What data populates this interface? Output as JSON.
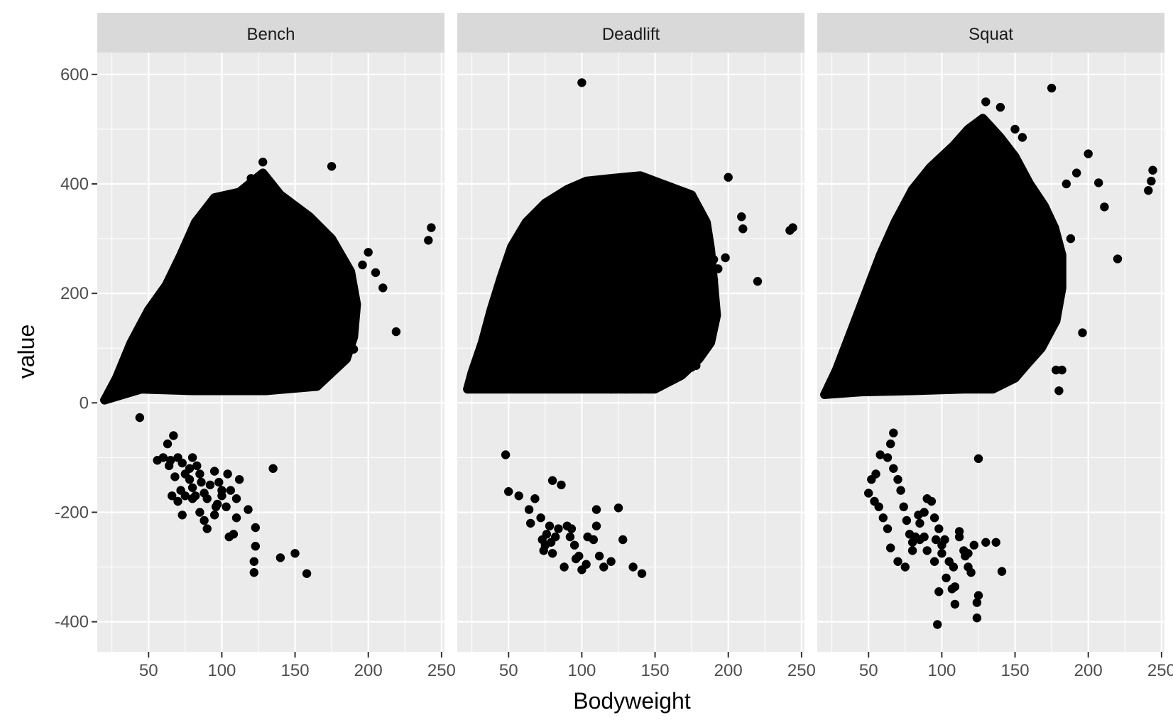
{
  "chart_data": {
    "type": "scatter",
    "xlabel": "Bodyweight",
    "ylabel": "value",
    "xlim": [
      15,
      252
    ],
    "ylim": [
      -455,
      640
    ],
    "x_ticks": [
      50,
      100,
      150,
      200,
      250
    ],
    "x_tick_labels": [
      "50",
      "100",
      "150",
      "200",
      "250"
    ],
    "y_ticks": [
      -400,
      -200,
      0,
      200,
      400,
      600
    ],
    "y_tick_labels": [
      "-400",
      "-200",
      "0",
      "200",
      "400",
      "600"
    ],
    "grid": true,
    "legend": "none",
    "point_color": "#000000",
    "facets": [
      {
        "name": "Bench",
        "dense_region": [
          [
            20,
            5
          ],
          [
            45,
            25
          ],
          [
            80,
            22
          ],
          [
            130,
            22
          ],
          [
            165,
            30
          ],
          [
            185,
            80
          ],
          [
            190,
            120
          ],
          [
            192,
            180
          ],
          [
            188,
            240
          ],
          [
            175,
            300
          ],
          [
            160,
            340
          ],
          [
            140,
            380
          ],
          [
            128,
            420
          ],
          [
            112,
            385
          ],
          [
            95,
            375
          ],
          [
            82,
            330
          ],
          [
            72,
            270
          ],
          [
            62,
            215
          ],
          [
            50,
            170
          ],
          [
            38,
            110
          ],
          [
            28,
            45
          ]
        ],
        "points": [
          [
            20,
            5
          ],
          [
            44,
            -27
          ],
          [
            243,
            320
          ],
          [
            241,
            297
          ],
          [
            219,
            130
          ],
          [
            210,
            210
          ],
          [
            205,
            238
          ],
          [
            200,
            275
          ],
          [
            196,
            252
          ],
          [
            190,
            98
          ],
          [
            185,
            125
          ],
          [
            175,
            432
          ],
          [
            128,
            440
          ],
          [
            120,
            410
          ],
          [
            125,
            25
          ],
          [
            140,
            25
          ],
          [
            135,
            -120
          ],
          [
            150,
            -275
          ],
          [
            140,
            -283
          ],
          [
            158,
            -312
          ],
          [
            122,
            -310
          ],
          [
            122,
            -290
          ],
          [
            123,
            -262
          ],
          [
            123,
            -228
          ],
          [
            118,
            -195
          ],
          [
            110,
            -210
          ],
          [
            108,
            -240
          ],
          [
            105,
            -245
          ],
          [
            110,
            -175
          ],
          [
            112,
            -140
          ],
          [
            104,
            -130
          ],
          [
            100,
            -160
          ],
          [
            97,
            -185
          ],
          [
            95,
            -205
          ],
          [
            90,
            -230
          ],
          [
            88,
            -215
          ],
          [
            85,
            -200
          ],
          [
            82,
            -170
          ],
          [
            80,
            -155
          ],
          [
            78,
            -140
          ],
          [
            75,
            -130
          ],
          [
            73,
            -110
          ],
          [
            70,
            -100
          ],
          [
            67,
            -60
          ],
          [
            63,
            -75
          ],
          [
            65,
            -105
          ],
          [
            68,
            -135
          ],
          [
            72,
            -160
          ],
          [
            75,
            -170
          ],
          [
            78,
            -120
          ],
          [
            80,
            -100
          ],
          [
            83,
            -115
          ],
          [
            86,
            -145
          ],
          [
            88,
            -165
          ],
          [
            92,
            -150
          ],
          [
            95,
            -125
          ],
          [
            98,
            -145
          ],
          [
            100,
            -170
          ],
          [
            103,
            -190
          ],
          [
            106,
            -160
          ],
          [
            56,
            -105
          ],
          [
            60,
            -100
          ],
          [
            64,
            -115
          ],
          [
            66,
            -170
          ],
          [
            70,
            -180
          ],
          [
            73,
            -205
          ],
          [
            80,
            -175
          ],
          [
            85,
            -130
          ],
          [
            90,
            -175
          ],
          [
            96,
            -190
          ]
        ]
      },
      {
        "name": "Deadlift",
        "dense_region": [
          [
            22,
            25
          ],
          [
            45,
            25
          ],
          [
            80,
            25
          ],
          [
            120,
            25
          ],
          [
            150,
            25
          ],
          [
            168,
            50
          ],
          [
            180,
            80
          ],
          [
            188,
            110
          ],
          [
            192,
            160
          ],
          [
            190,
            220
          ],
          [
            188,
            280
          ],
          [
            185,
            330
          ],
          [
            175,
            380
          ],
          [
            155,
            400
          ],
          [
            140,
            415
          ],
          [
            120,
            410
          ],
          [
            103,
            405
          ],
          [
            90,
            390
          ],
          [
            75,
            365
          ],
          [
            62,
            330
          ],
          [
            52,
            285
          ],
          [
            45,
            230
          ],
          [
            38,
            170
          ],
          [
            32,
            110
          ],
          [
            25,
            55
          ]
        ],
        "points": [
          [
            100,
            585
          ],
          [
            22,
            25
          ],
          [
            244,
            320
          ],
          [
            242,
            315
          ],
          [
            220,
            222
          ],
          [
            210,
            318
          ],
          [
            209,
            340
          ],
          [
            200,
            412
          ],
          [
            198,
            265
          ],
          [
            193,
            245
          ],
          [
            190,
            262
          ],
          [
            190,
            225
          ],
          [
            188,
            210
          ],
          [
            185,
            195
          ],
          [
            183,
            180
          ],
          [
            180,
            100
          ],
          [
            178,
            68
          ],
          [
            175,
            65
          ],
          [
            168,
            140
          ],
          [
            165,
            100
          ],
          [
            160,
            75
          ],
          [
            155,
            80
          ],
          [
            150,
            78
          ],
          [
            145,
            60
          ],
          [
            140,
            60
          ],
          [
            133,
            60
          ],
          [
            128,
            70
          ],
          [
            120,
            70
          ],
          [
            140,
            25
          ],
          [
            130,
            25
          ],
          [
            120,
            25
          ],
          [
            48,
            -95
          ],
          [
            50,
            -162
          ],
          [
            57,
            -170
          ],
          [
            64,
            -195
          ],
          [
            65,
            -220
          ],
          [
            68,
            -175
          ],
          [
            72,
            -210
          ],
          [
            76,
            -240
          ],
          [
            75,
            -260
          ],
          [
            79,
            -255
          ],
          [
            82,
            -245
          ],
          [
            80,
            -275
          ],
          [
            74,
            -270
          ],
          [
            73,
            -250
          ],
          [
            78,
            -225
          ],
          [
            84,
            -230
          ],
          [
            86,
            -150
          ],
          [
            80,
            -142
          ],
          [
            90,
            -225
          ],
          [
            92,
            -245
          ],
          [
            95,
            -260
          ],
          [
            98,
            -280
          ],
          [
            100,
            -305
          ],
          [
            103,
            -295
          ],
          [
            108,
            -250
          ],
          [
            110,
            -225
          ],
          [
            110,
            -195
          ],
          [
            112,
            -280
          ],
          [
            115,
            -300
          ],
          [
            120,
            -290
          ],
          [
            125,
            -192
          ],
          [
            128,
            -250
          ],
          [
            135,
            -300
          ],
          [
            141,
            -312
          ],
          [
            88,
            -300
          ],
          [
            93,
            -230
          ],
          [
            96,
            -285
          ],
          [
            104,
            -245
          ]
        ]
      },
      {
        "name": "Squat",
        "dense_region": [
          [
            20,
            15
          ],
          [
            45,
            20
          ],
          [
            80,
            22
          ],
          [
            115,
            25
          ],
          [
            135,
            25
          ],
          [
            150,
            45
          ],
          [
            158,
            70
          ],
          [
            168,
            100
          ],
          [
            178,
            150
          ],
          [
            182,
            210
          ],
          [
            182,
            270
          ],
          [
            177,
            320
          ],
          [
            170,
            360
          ],
          [
            160,
            400
          ],
          [
            150,
            450
          ],
          [
            140,
            485
          ],
          [
            128,
            520
          ],
          [
            118,
            500
          ],
          [
            108,
            470
          ],
          [
            92,
            430
          ],
          [
            80,
            390
          ],
          [
            68,
            330
          ],
          [
            58,
            270
          ],
          [
            48,
            200
          ],
          [
            38,
            130
          ],
          [
            28,
            60
          ]
        ],
        "points": [
          [
            20,
            15
          ],
          [
            175,
            575
          ],
          [
            244,
            425
          ],
          [
            243,
            405
          ],
          [
            241,
            388
          ],
          [
            220,
            263
          ],
          [
            211,
            358
          ],
          [
            207,
            402
          ],
          [
            200,
            455
          ],
          [
            196,
            128
          ],
          [
            192,
            420
          ],
          [
            188,
            300
          ],
          [
            185,
            400
          ],
          [
            180,
            22
          ],
          [
            178,
            60
          ],
          [
            182,
            60
          ],
          [
            177,
            240
          ],
          [
            172,
            190
          ],
          [
            165,
            210
          ],
          [
            160,
            140
          ],
          [
            155,
            195
          ],
          [
            152,
            120
          ],
          [
            148,
            75
          ],
          [
            140,
            540
          ],
          [
            130,
            550
          ],
          [
            150,
            500
          ],
          [
            155,
            485
          ],
          [
            125,
            -102
          ],
          [
            130,
            -255
          ],
          [
            137,
            -255
          ],
          [
            141,
            -308
          ],
          [
            125,
            -352
          ],
          [
            124,
            -393
          ],
          [
            124,
            -365
          ],
          [
            116,
            -280
          ],
          [
            120,
            -310
          ],
          [
            118,
            -300
          ],
          [
            115,
            -270
          ],
          [
            112,
            -245
          ],
          [
            109,
            -336
          ],
          [
            109,
            -368
          ],
          [
            108,
            -300
          ],
          [
            105,
            -290
          ],
          [
            100,
            -275
          ],
          [
            98,
            -345
          ],
          [
            97,
            -405
          ],
          [
            102,
            -250
          ],
          [
            98,
            -230
          ],
          [
            95,
            -210
          ],
          [
            93,
            -180
          ],
          [
            90,
            -175
          ],
          [
            88,
            -200
          ],
          [
            85,
            -220
          ],
          [
            82,
            -245
          ],
          [
            80,
            -270
          ],
          [
            78,
            -240
          ],
          [
            76,
            -215
          ],
          [
            74,
            -190
          ],
          [
            72,
            -160
          ],
          [
            70,
            -140
          ],
          [
            67,
            -120
          ],
          [
            65,
            -75
          ],
          [
            67,
            -55
          ],
          [
            63,
            -100
          ],
          [
            58,
            -95
          ],
          [
            55,
            -130
          ],
          [
            52,
            -140
          ],
          [
            50,
            -165
          ],
          [
            54,
            -180
          ],
          [
            57,
            -190
          ],
          [
            60,
            -210
          ],
          [
            63,
            -230
          ],
          [
            65,
            -265
          ],
          [
            70,
            -290
          ],
          [
            75,
            -300
          ],
          [
            80,
            -255
          ],
          [
            85,
            -250
          ],
          [
            90,
            -270
          ],
          [
            95,
            -290
          ],
          [
            100,
            -260
          ],
          [
            103,
            -320
          ],
          [
            107,
            -340
          ],
          [
            112,
            -235
          ],
          [
            118,
            -275
          ],
          [
            122,
            -260
          ],
          [
            96,
            -250
          ],
          [
            88,
            -245
          ],
          [
            84,
            -205
          ]
        ]
      }
    ]
  }
}
